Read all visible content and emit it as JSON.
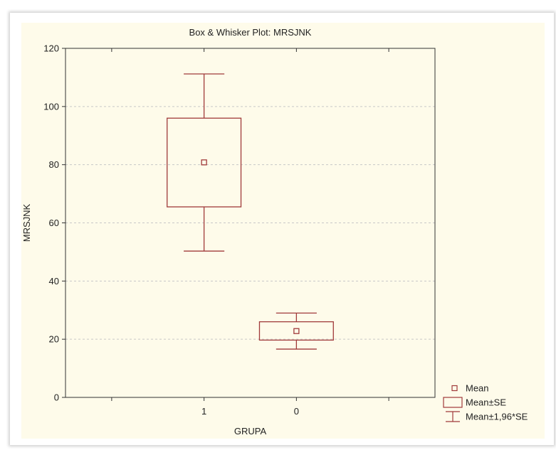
{
  "chart_data": {
    "type": "box",
    "title": "Box & Whisker Plot:  MRSJNK",
    "xlabel": "GRUPA",
    "ylabel": "MRSJNK",
    "categories": [
      "1",
      "0"
    ],
    "ylim": [
      0,
      120
    ],
    "yticks": [
      0,
      20,
      40,
      60,
      80,
      100,
      120
    ],
    "grid": true,
    "legend_position": "bottom-right",
    "groups": [
      {
        "label": "1",
        "mean": 80.8,
        "se_low": 65.5,
        "se_high": 96.0,
        "ci_low": 50.3,
        "ci_high": 111.2
      },
      {
        "label": "0",
        "mean": 22.8,
        "se_low": 19.7,
        "se_high": 26.0,
        "ci_low": 16.6,
        "ci_high": 29.0
      }
    ],
    "legend": [
      {
        "symbol": "mean",
        "label": "Mean"
      },
      {
        "symbol": "box",
        "label": "Mean±SE"
      },
      {
        "symbol": "whisker",
        "label": "Mean±1,96*SE"
      }
    ],
    "colors": {
      "series": "#a03a3a",
      "panel": "#fefbea",
      "grid": "#c8c8c8",
      "axis": "#333333"
    }
  }
}
